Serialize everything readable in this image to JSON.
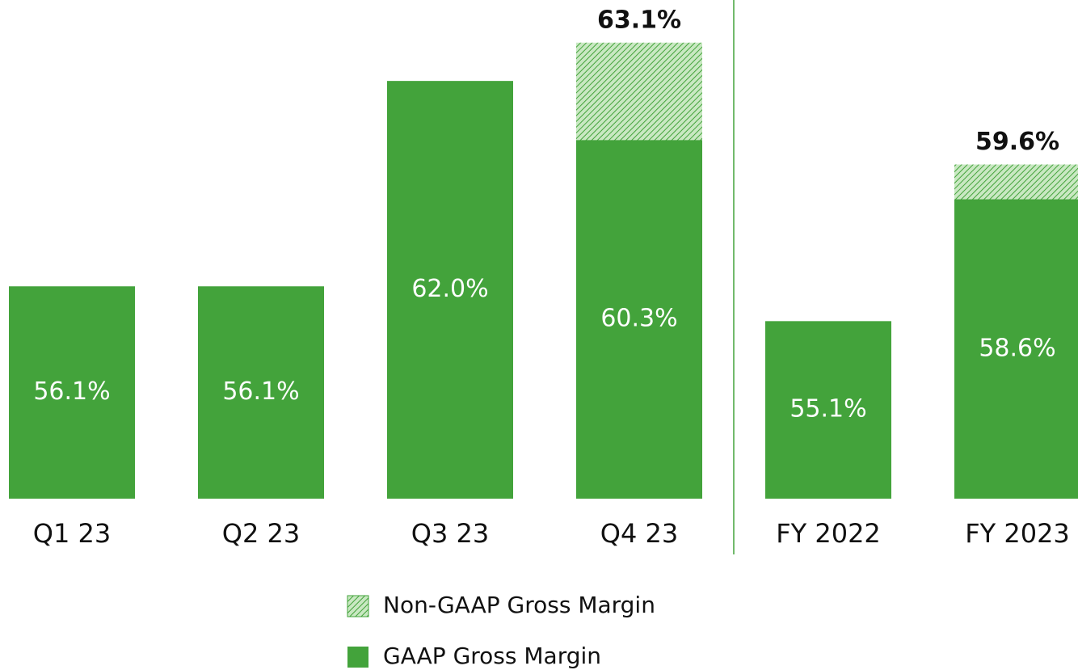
{
  "chart_data": {
    "type": "bar",
    "categories": [
      "Q1 23",
      "Q2 23",
      "Q3 23",
      "Q4 23",
      "FY 2022",
      "FY 2023"
    ],
    "series": [
      {
        "name": "Non-GAAP Gross Margin",
        "color": "#43a33b",
        "pattern": "hatch",
        "values": [
          null,
          null,
          null,
          63.1,
          null,
          59.6
        ],
        "value_labels": [
          null,
          null,
          null,
          "63.1%",
          null,
          "59.6%"
        ]
      },
      {
        "name": "GAAP Gross Margin",
        "color": "#43a33b",
        "values": [
          56.1,
          56.1,
          62.0,
          60.3,
          55.1,
          58.6
        ],
        "value_labels": [
          "56.1%",
          "56.1%",
          "62.0%",
          "60.3%",
          "55.1%",
          "58.6%"
        ]
      }
    ],
    "ylim": [
      50,
      64
    ]
  }
}
